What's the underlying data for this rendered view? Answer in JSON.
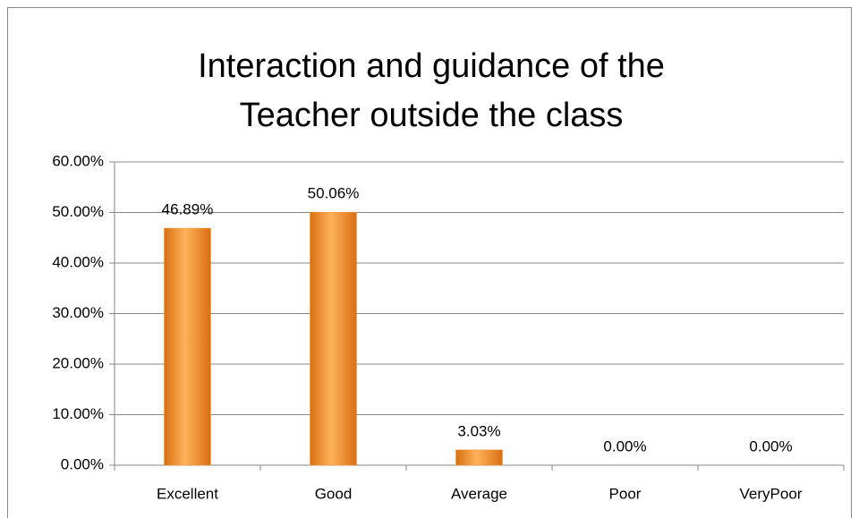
{
  "chart_data": {
    "type": "bar",
    "title": [
      "Interaction and guidance of the",
      "Teacher outside the class"
    ],
    "categories": [
      "Excellent",
      "Good",
      "Average",
      "Poor",
      "VeryPoor"
    ],
    "values": [
      46.89,
      50.06,
      3.03,
      0,
      0
    ],
    "value_labels": [
      "46.89%",
      "50.06%",
      "3.03%",
      "0.00%",
      "0.00%"
    ],
    "color": "#f7962e",
    "ylim": [
      0,
      60
    ],
    "yticks": [
      {
        "value": 0,
        "label": "0.00%"
      },
      {
        "value": 10,
        "label": "10.00%"
      },
      {
        "value": 20,
        "label": "20.00%"
      },
      {
        "value": 30,
        "label": "30.00%"
      },
      {
        "value": 40,
        "label": "40.00%"
      },
      {
        "value": 50,
        "label": "50.00%"
      },
      {
        "value": 60,
        "label": "60.00%"
      }
    ],
    "grid": true
  }
}
